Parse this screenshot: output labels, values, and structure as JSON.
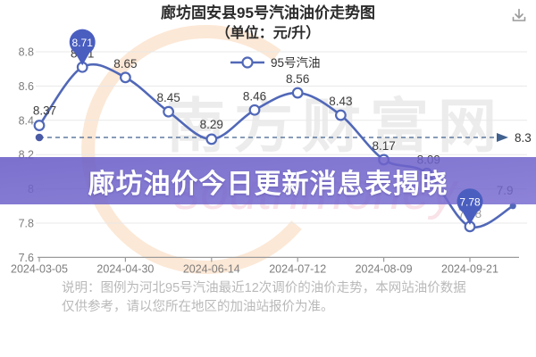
{
  "title": {
    "line1": "廊坊固安县95号汽油油价走势图",
    "line2": "（单位：元/升）"
  },
  "icons": {
    "download": "download-arrow-into-tray"
  },
  "legend": {
    "label": "95号汽油"
  },
  "overlay_banner": {
    "text": "廊坊油价今日更新消息表揭晓",
    "color": "#6E61C9"
  },
  "watermark": {
    "text": "南方财富网",
    "script_text": "southmoney"
  },
  "chart_data": {
    "type": "line",
    "title": "廊坊固安县95号汽油油价走势图（单位：元/升）",
    "series": [
      {
        "name": "95号汽油",
        "values": [
          8.37,
          8.71,
          8.65,
          8.45,
          8.29,
          8.46,
          8.56,
          8.43,
          8.17,
          8.09,
          7.78,
          7.9
        ]
      }
    ],
    "x_tick_labels": [
      "2024-03-05",
      "2024-04-30",
      "2024-06-14",
      "2024-07-12",
      "2024-08-09",
      "2024-09-21"
    ],
    "y_ticks": [
      8.8,
      8.6,
      8.4,
      8.2,
      8,
      7.8,
      7.6
    ],
    "ylim": [
      7.6,
      8.8
    ],
    "grid": true,
    "legend_position": "top-center",
    "reference_line": {
      "value": 8.3,
      "label": "8.3",
      "style": "dashed-arrow"
    },
    "balloon_indices": [
      1,
      10
    ],
    "line_color": "#5168B8",
    "balloon_color": "#4A5EC0",
    "reference_color": "#41618E"
  },
  "footnote": {
    "text": "说明：图例为河北95号汽油最近12次调价的油价走势，本网站油价数据仅供参考，请以您所在地区的加油站报价为准。"
  }
}
